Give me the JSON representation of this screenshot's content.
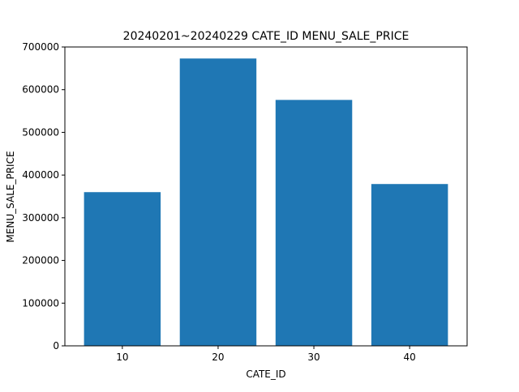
{
  "chart_data": {
    "type": "bar",
    "title": "20240201~20240229  CATE_ID   MENU_SALE_PRICE",
    "xlabel": "CATE_ID",
    "ylabel": "MENU_SALE_PRICE",
    "categories": [
      "10",
      "20",
      "30",
      "40"
    ],
    "values": [
      360000,
      673000,
      576000,
      379000
    ],
    "ylim": [
      0,
      700000
    ],
    "yticks": [
      0,
      100000,
      200000,
      300000,
      400000,
      500000,
      600000,
      700000
    ],
    "ytick_labels": [
      "0",
      "100000",
      "200000",
      "300000",
      "400000",
      "500000",
      "600000",
      "700000"
    ],
    "bar_color": "#1f77b4",
    "grid": false,
    "legend": "none"
  }
}
